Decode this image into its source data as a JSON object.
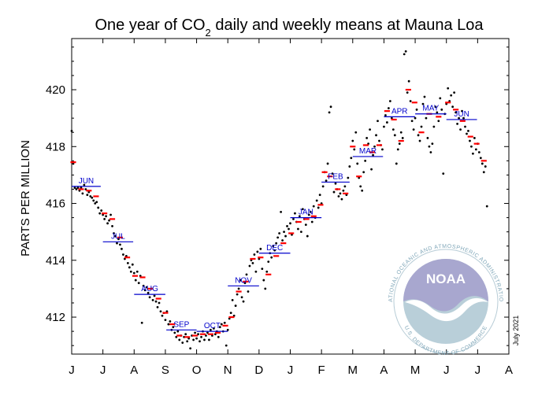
{
  "chart_data": {
    "type": "scatter",
    "title_pre": "One year of CO",
    "title_sub": "2",
    "title_post": " daily and weekly means at Mauna Loa",
    "ylabel": "PARTS PER MILLION",
    "ylim": [
      410.7,
      421.8
    ],
    "yticks": [
      "412",
      "414",
      "416",
      "418",
      "420"
    ],
    "ytick_values": [
      412,
      414,
      416,
      418,
      420
    ],
    "xtick_labels": [
      "J",
      "J",
      "A",
      "S",
      "O",
      "N",
      "D",
      "J",
      "F",
      "M",
      "A",
      "M",
      "J",
      "J",
      "A"
    ],
    "xlim": [
      0,
      14
    ],
    "grid": false,
    "note": "July 2021",
    "logo_text": "NOAA",
    "logo_ring": "NATIONAL OCEANIC AND ATMOSPHERIC ADMINISTRATION",
    "logo_ring_bottom": "U.S. DEPARTMENT OF COMMERCE",
    "monthly_means": [
      {
        "label": "JUN",
        "x0": 0.0,
        "x1": 0.93,
        "y": 416.6
      },
      {
        "label": "JUL",
        "x0": 1.0,
        "x1": 1.97,
        "y": 414.65
      },
      {
        "label": "AUG",
        "x0": 2.0,
        "x1": 3.0,
        "y": 412.8
      },
      {
        "label": "SEP",
        "x0": 3.03,
        "x1": 4.0,
        "y": 411.55
      },
      {
        "label": "OCT",
        "x0": 4.0,
        "x1": 5.0,
        "y": 411.5
      },
      {
        "label": "NOV",
        "x0": 5.0,
        "x1": 6.0,
        "y": 413.1
      },
      {
        "label": "DEC",
        "x0": 6.0,
        "x1": 7.0,
        "y": 414.25
      },
      {
        "label": "JAN",
        "x0": 7.0,
        "x1": 8.0,
        "y": 415.5
      },
      {
        "label": "FEB",
        "x0": 8.0,
        "x1": 8.9,
        "y": 416.75
      },
      {
        "label": "MAR",
        "x0": 9.0,
        "x1": 9.97,
        "y": 417.65
      },
      {
        "label": "APR",
        "x0": 10.0,
        "x1": 11.0,
        "y": 419.05
      },
      {
        "label": "MAY",
        "x0": 11.0,
        "x1": 12.0,
        "y": 419.15
      },
      {
        "label": "JUN",
        "x0": 12.0,
        "x1": 12.98,
        "y": 418.95
      }
    ],
    "weekly_means": [
      [
        0.05,
        417.45
      ],
      [
        0.3,
        416.5
      ],
      [
        0.55,
        416.45
      ],
      [
        0.78,
        416.25
      ],
      [
        1.05,
        415.65
      ],
      [
        1.3,
        415.45
      ],
      [
        1.55,
        414.8
      ],
      [
        1.78,
        414.1
      ],
      [
        2.03,
        413.45
      ],
      [
        2.27,
        413.4
      ],
      [
        2.52,
        413.0
      ],
      [
        2.78,
        412.65
      ],
      [
        3.0,
        412.15
      ],
      [
        3.22,
        411.75
      ],
      [
        3.45,
        411.35
      ],
      [
        3.7,
        411.3
      ],
      [
        3.95,
        411.35
      ],
      [
        4.2,
        411.4
      ],
      [
        4.45,
        411.4
      ],
      [
        4.68,
        411.45
      ],
      [
        4.92,
        411.7
      ],
      [
        5.12,
        412.0
      ],
      [
        5.35,
        412.9
      ],
      [
        5.57,
        413.25
      ],
      [
        5.8,
        414.05
      ],
      [
        6.05,
        414.1
      ],
      [
        6.3,
        413.5
      ],
      [
        6.55,
        414.15
      ],
      [
        6.78,
        414.6
      ],
      [
        7.03,
        414.95
      ],
      [
        7.27,
        415.35
      ],
      [
        7.52,
        415.45
      ],
      [
        7.75,
        415.55
      ],
      [
        7.97,
        415.95
      ],
      [
        8.1,
        417.1
      ],
      [
        8.27,
        416.95
      ],
      [
        8.52,
        416.5
      ],
      [
        8.77,
        416.35
      ],
      [
        9.0,
        418.0
      ],
      [
        9.2,
        416.95
      ],
      [
        9.42,
        418.05
      ],
      [
        9.62,
        417.8
      ],
      [
        9.85,
        418.05
      ],
      [
        10.1,
        419.25
      ],
      [
        10.32,
        418.95
      ],
      [
        10.55,
        418.2
      ],
      [
        10.78,
        420.0
      ],
      [
        10.98,
        419.55
      ],
      [
        11.2,
        418.5
      ],
      [
        11.45,
        419.15
      ],
      [
        11.75,
        419.05
      ],
      [
        12.05,
        419.55
      ],
      [
        12.3,
        419.3
      ],
      [
        12.52,
        418.9
      ],
      [
        12.77,
        418.35
      ],
      [
        12.97,
        418.1
      ],
      [
        13.2,
        417.5
      ]
    ],
    "daily_means": [
      [
        0.0,
        418.55
      ],
      [
        0.05,
        417.4
      ],
      [
        0.1,
        416.55
      ],
      [
        0.15,
        416.5
      ],
      [
        0.2,
        416.55
      ],
      [
        0.25,
        416.45
      ],
      [
        0.3,
        416.55
      ],
      [
        0.35,
        416.35
      ],
      [
        0.4,
        416.65
      ],
      [
        0.45,
        416.5
      ],
      [
        0.5,
        416.3
      ],
      [
        0.55,
        416.4
      ],
      [
        0.6,
        416.25
      ],
      [
        0.65,
        416.2
      ],
      [
        0.7,
        416.1
      ],
      [
        0.75,
        416.0
      ],
      [
        0.8,
        416.05
      ],
      [
        0.85,
        415.85
      ],
      [
        0.9,
        415.65
      ],
      [
        0.95,
        415.75
      ],
      [
        1.0,
        415.6
      ],
      [
        1.05,
        415.45
      ],
      [
        1.1,
        415.55
      ],
      [
        1.15,
        415.3
      ],
      [
        1.2,
        415.4
      ],
      [
        1.25,
        415.6
      ],
      [
        1.3,
        415.2
      ],
      [
        1.35,
        414.95
      ],
      [
        1.4,
        414.85
      ],
      [
        1.45,
        414.6
      ],
      [
        1.5,
        414.75
      ],
      [
        1.55,
        414.55
      ],
      [
        1.6,
        414.4
      ],
      [
        1.65,
        414.2
      ],
      [
        1.7,
        414.05
      ],
      [
        1.75,
        414.15
      ],
      [
        1.8,
        413.9
      ],
      [
        1.85,
        413.75
      ],
      [
        1.9,
        413.6
      ],
      [
        1.95,
        413.85
      ],
      [
        2.0,
        413.55
      ],
      [
        2.05,
        413.3
      ],
      [
        2.1,
        413.6
      ],
      [
        2.15,
        413.2
      ],
      [
        2.2,
        413.45
      ],
      [
        2.25,
        411.8
      ],
      [
        2.3,
        413.1
      ],
      [
        2.35,
        412.95
      ],
      [
        2.4,
        413.05
      ],
      [
        2.45,
        412.85
      ],
      [
        2.5,
        412.7
      ],
      [
        2.55,
        413.0
      ],
      [
        2.6,
        412.6
      ],
      [
        2.65,
        412.75
      ],
      [
        2.7,
        412.55
      ],
      [
        2.75,
        412.35
      ],
      [
        2.8,
        412.5
      ],
      [
        2.85,
        412.2
      ],
      [
        2.9,
        412.05
      ],
      [
        2.95,
        412.15
      ],
      [
        3.0,
        411.9
      ],
      [
        3.05,
        412.2
      ],
      [
        3.1,
        411.75
      ],
      [
        3.15,
        411.85
      ],
      [
        3.2,
        411.55
      ],
      [
        3.25,
        411.65
      ],
      [
        3.3,
        411.45
      ],
      [
        3.35,
        411.3
      ],
      [
        3.4,
        411.5
      ],
      [
        3.45,
        411.2
      ],
      [
        3.5,
        411.35
      ],
      [
        3.55,
        411.1
      ],
      [
        3.6,
        411.3
      ],
      [
        3.65,
        411.4
      ],
      [
        3.7,
        411.15
      ],
      [
        3.75,
        411.25
      ],
      [
        3.8,
        410.9
      ],
      [
        3.85,
        411.35
      ],
      [
        3.9,
        411.2
      ],
      [
        3.95,
        411.45
      ],
      [
        4.0,
        411.25
      ],
      [
        4.05,
        411.4
      ],
      [
        4.1,
        411.15
      ],
      [
        4.15,
        411.3
      ],
      [
        4.2,
        411.5
      ],
      [
        4.25,
        411.2
      ],
      [
        4.3,
        411.35
      ],
      [
        4.35,
        411.45
      ],
      [
        4.4,
        411.2
      ],
      [
        4.45,
        411.55
      ],
      [
        4.5,
        411.35
      ],
      [
        4.55,
        411.6
      ],
      [
        4.6,
        411.4
      ],
      [
        4.65,
        411.5
      ],
      [
        4.7,
        411.3
      ],
      [
        4.75,
        411.65
      ],
      [
        4.8,
        411.75
      ],
      [
        4.85,
        411.5
      ],
      [
        4.9,
        411.8
      ],
      [
        4.95,
        411.0
      ],
      [
        5.0,
        411.55
      ],
      [
        5.05,
        411.95
      ],
      [
        5.1,
        412.15
      ],
      [
        5.15,
        412.6
      ],
      [
        5.2,
        412.05
      ],
      [
        5.25,
        412.4
      ],
      [
        5.3,
        412.8
      ],
      [
        5.35,
        413.0
      ],
      [
        5.4,
        413.3
      ],
      [
        5.45,
        412.7
      ],
      [
        5.5,
        412.55
      ],
      [
        5.55,
        413.2
      ],
      [
        5.6,
        413.5
      ],
      [
        5.65,
        412.9
      ],
      [
        5.7,
        413.8
      ],
      [
        5.75,
        414.0
      ],
      [
        5.8,
        413.9
      ],
      [
        5.85,
        414.2
      ],
      [
        5.9,
        413.6
      ],
      [
        5.95,
        414.3
      ],
      [
        6.0,
        414.05
      ],
      [
        6.05,
        414.4
      ],
      [
        6.1,
        413.7
      ],
      [
        6.15,
        413.3
      ],
      [
        6.2,
        413.0
      ],
      [
        6.25,
        413.6
      ],
      [
        6.3,
        413.95
      ],
      [
        6.35,
        414.25
      ],
      [
        6.4,
        414.1
      ],
      [
        6.45,
        414.5
      ],
      [
        6.5,
        414.35
      ],
      [
        6.55,
        414.6
      ],
      [
        6.6,
        414.8
      ],
      [
        6.65,
        414.95
      ],
      [
        6.7,
        415.7
      ],
      [
        6.75,
        414.7
      ],
      [
        6.8,
        415.0
      ],
      [
        6.85,
        414.85
      ],
      [
        6.9,
        415.2
      ],
      [
        6.95,
        415.1
      ],
      [
        7.0,
        415.3
      ],
      [
        7.05,
        414.9
      ],
      [
        7.1,
        415.45
      ],
      [
        7.15,
        415.65
      ],
      [
        7.2,
        415.35
      ],
      [
        7.25,
        415.1
      ],
      [
        7.3,
        415.55
      ],
      [
        7.35,
        415.0
      ],
      [
        7.4,
        415.8
      ],
      [
        7.45,
        415.45
      ],
      [
        7.5,
        415.25
      ],
      [
        7.55,
        414.85
      ],
      [
        7.6,
        415.6
      ],
      [
        7.65,
        415.7
      ],
      [
        7.7,
        415.35
      ],
      [
        7.75,
        415.9
      ],
      [
        7.8,
        415.5
      ],
      [
        7.85,
        416.1
      ],
      [
        7.9,
        415.85
      ],
      [
        7.95,
        416.3
      ],
      [
        8.0,
        416.0
      ],
      [
        8.05,
        416.6
      ],
      [
        8.1,
        417.1
      ],
      [
        8.15,
        416.8
      ],
      [
        8.2,
        417.4
      ],
      [
        8.25,
        419.2
      ],
      [
        8.3,
        419.4
      ],
      [
        8.35,
        417.05
      ],
      [
        8.4,
        416.4
      ],
      [
        8.45,
        416.7
      ],
      [
        8.5,
        416.5
      ],
      [
        8.55,
        416.25
      ],
      [
        8.6,
        416.35
      ],
      [
        8.65,
        416.15
      ],
      [
        8.7,
        416.45
      ],
      [
        8.75,
        416.6
      ],
      [
        8.8,
        416.3
      ],
      [
        8.85,
        416.9
      ],
      [
        8.9,
        417.3
      ],
      [
        8.95,
        417.6
      ],
      [
        9.0,
        418.2
      ],
      [
        9.05,
        417.9
      ],
      [
        9.1,
        418.5
      ],
      [
        9.15,
        417.4
      ],
      [
        9.2,
        416.9
      ],
      [
        9.25,
        416.6
      ],
      [
        9.3,
        416.45
      ],
      [
        9.35,
        417.1
      ],
      [
        9.4,
        417.5
      ],
      [
        9.45,
        418.3
      ],
      [
        9.5,
        418.1
      ],
      [
        9.55,
        418.6
      ],
      [
        9.6,
        417.2
      ],
      [
        9.65,
        417.7
      ],
      [
        9.7,
        418.0
      ],
      [
        9.75,
        418.4
      ],
      [
        9.8,
        418.9
      ],
      [
        9.85,
        418.2
      ],
      [
        9.9,
        418.05
      ],
      [
        9.95,
        417.9
      ],
      [
        10.0,
        418.7
      ],
      [
        10.05,
        419.1
      ],
      [
        10.1,
        418.85
      ],
      [
        10.15,
        419.35
      ],
      [
        10.2,
        419.6
      ],
      [
        10.25,
        419.0
      ],
      [
        10.3,
        418.6
      ],
      [
        10.35,
        418.4
      ],
      [
        10.4,
        417.4
      ],
      [
        10.45,
        417.9
      ],
      [
        10.5,
        418.1
      ],
      [
        10.55,
        418.5
      ],
      [
        10.6,
        418.3
      ],
      [
        10.65,
        421.25
      ],
      [
        10.7,
        421.35
      ],
      [
        10.75,
        419.9
      ],
      [
        10.8,
        420.3
      ],
      [
        10.85,
        419.6
      ],
      [
        10.9,
        418.9
      ],
      [
        10.95,
        418.6
      ],
      [
        11.0,
        419.0
      ],
      [
        11.05,
        419.3
      ],
      [
        11.1,
        418.4
      ],
      [
        11.15,
        418.2
      ],
      [
        11.2,
        418.7
      ],
      [
        11.25,
        419.5
      ],
      [
        11.3,
        419.75
      ],
      [
        11.35,
        419.0
      ],
      [
        11.4,
        418.3
      ],
      [
        11.45,
        418.0
      ],
      [
        11.5,
        417.8
      ],
      [
        11.55,
        418.1
      ],
      [
        11.6,
        418.7
      ],
      [
        11.65,
        419.4
      ],
      [
        11.7,
        419.2
      ],
      [
        11.75,
        418.9
      ],
      [
        11.8,
        419.7
      ],
      [
        11.85,
        419.3
      ],
      [
        11.9,
        417.05
      ],
      [
        11.95,
        419.15
      ],
      [
        12.0,
        419.5
      ],
      [
        12.05,
        420.05
      ],
      [
        12.1,
        419.6
      ],
      [
        12.15,
        419.8
      ],
      [
        12.2,
        419.4
      ],
      [
        12.25,
        419.9
      ],
      [
        12.3,
        419.2
      ],
      [
        12.35,
        418.8
      ],
      [
        12.4,
        419.0
      ],
      [
        12.45,
        418.6
      ],
      [
        12.5,
        419.25
      ],
      [
        12.55,
        419.0
      ],
      [
        12.6,
        418.7
      ],
      [
        12.65,
        418.45
      ],
      [
        12.7,
        418.55
      ],
      [
        12.75,
        418.2
      ],
      [
        12.8,
        418.0
      ],
      [
        12.85,
        417.75
      ],
      [
        12.9,
        418.3
      ],
      [
        12.95,
        417.9
      ],
      [
        13.0,
        418.1
      ],
      [
        13.05,
        417.8
      ],
      [
        13.1,
        417.6
      ],
      [
        13.15,
        417.4
      ],
      [
        13.2,
        417.1
      ],
      [
        13.25,
        417.3
      ],
      [
        13.3,
        415.9
      ]
    ]
  }
}
